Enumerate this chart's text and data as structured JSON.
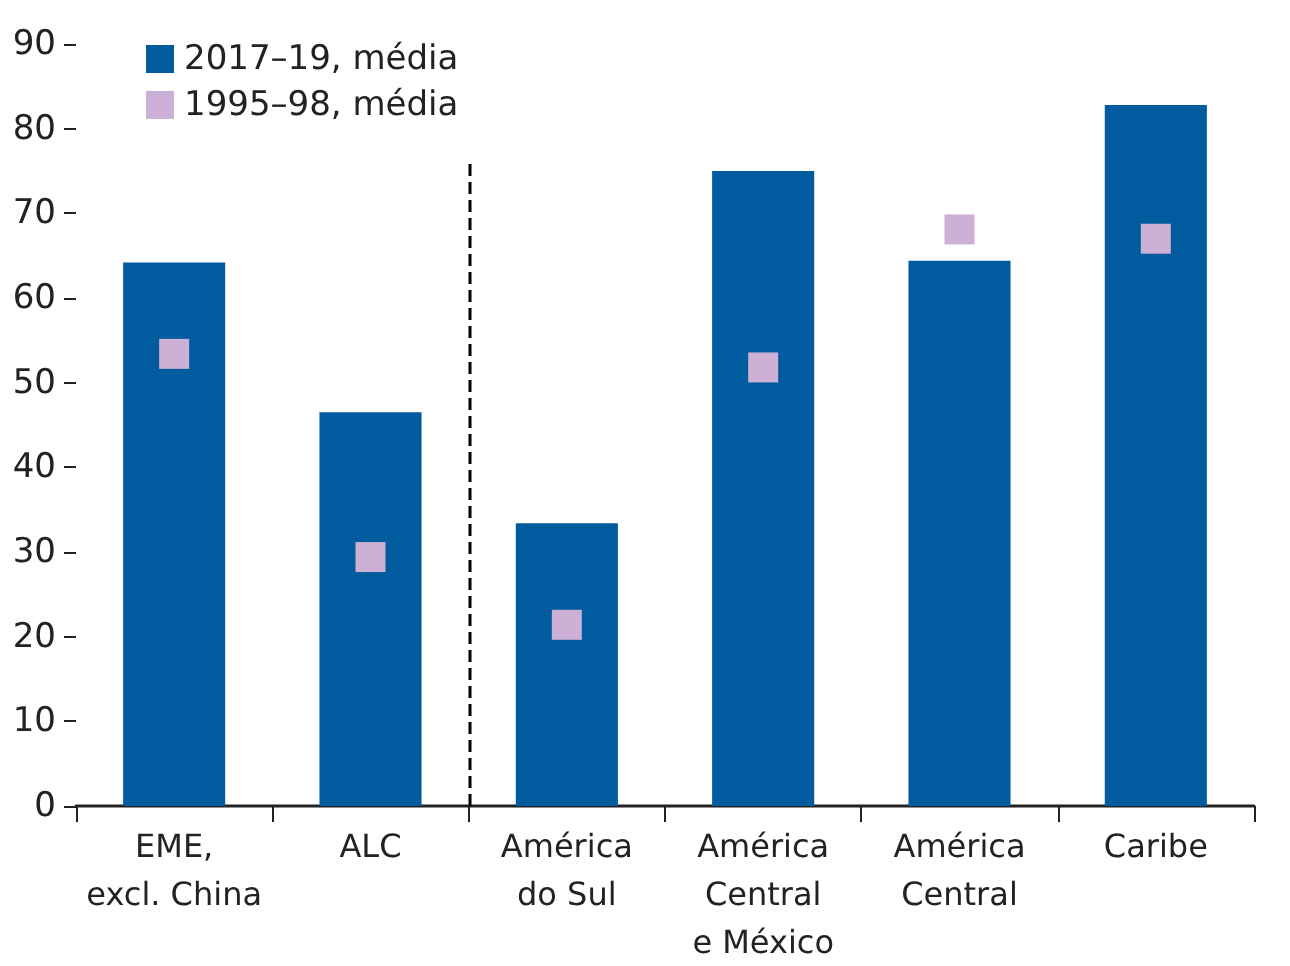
{
  "chart_data": {
    "type": "bar",
    "categories": [
      "EME,\nexcl. China",
      "ALC",
      "América\ndo Sul",
      "América\nCentral\ne México",
      "América\nCentral",
      "Caribe"
    ],
    "series": [
      {
        "name": "2017–19, média",
        "color": "#005b9f",
        "values": [
          64.2,
          46.5,
          33.4,
          75,
          64.4,
          82.8
        ]
      },
      {
        "name": "1995–98, média",
        "type": "scatter",
        "color": "#cdb0d6",
        "values": [
          53.4,
          29.4,
          21.4,
          51.8,
          68.1,
          67
        ]
      }
    ],
    "ylim": [
      0,
      90
    ],
    "yticks": [
      0,
      10,
      20,
      30,
      40,
      50,
      60,
      70,
      80,
      90
    ],
    "grid": false,
    "legend": "top left",
    "marker": "square"
  }
}
